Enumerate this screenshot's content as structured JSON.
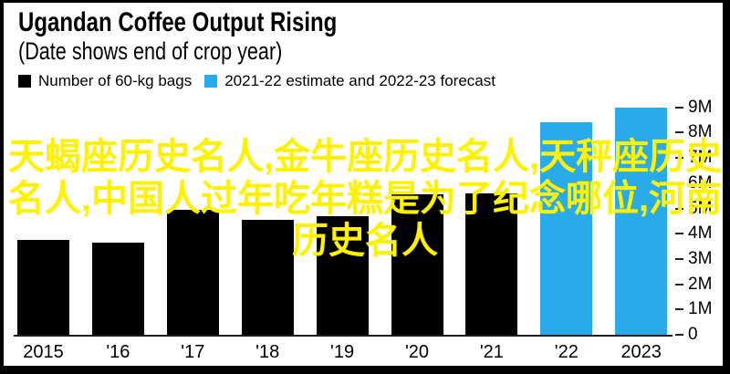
{
  "header": {
    "title": "Ugandan Coffee Output Rising",
    "subtitle": "(Date shows end of crop year)"
  },
  "legend": {
    "items": [
      {
        "label": "Number of 60-kg bags",
        "color": "#000000"
      },
      {
        "label": "2021-22 estimate and 2022-23 forecast",
        "color": "#29ABE9"
      }
    ]
  },
  "overlay": {
    "full_text": "天蝎座历史名人,金牛座历史名人,天秤座历史名人,中国人过年吃年糕是为了纪念哪位,河南历史名人",
    "lines": [
      "天蝎座历史名人,金牛座历史名人,天秤座历史",
      "名人,中国人过年吃年糕是为了纪念哪位,河南",
      "历史名人"
    ],
    "color": "#FFF200"
  },
  "chart_data": {
    "type": "bar",
    "title": "Ugandan Coffee Output Rising",
    "subtitle": "(Date shows end of crop year)",
    "categories": [
      "2015",
      "'16",
      "'17",
      "'18",
      "'19",
      "'20",
      "'21",
      "'22",
      "2023"
    ],
    "series": [
      {
        "name": "Number of 60-kg bags",
        "color": "#000000",
        "values": [
          3.75,
          3.65,
          4.95,
          4.55,
          4.7,
          5.55,
          5.6,
          null,
          null
        ]
      },
      {
        "name": "2021-22 estimate and 2022-23 forecast",
        "color": "#29ABE9",
        "values": [
          null,
          null,
          null,
          null,
          null,
          null,
          null,
          8.4,
          9.0
        ]
      }
    ],
    "ylim": [
      0,
      9
    ],
    "yticks": [
      0,
      1,
      2,
      3,
      4,
      5,
      6,
      7,
      8,
      9
    ],
    "ytick_labels": [
      "0",
      "1M",
      "2M",
      "3M",
      "4M",
      "5M",
      "6M",
      "7M",
      "8M",
      "9M"
    ],
    "axis_side": "right",
    "grid": false,
    "legend_position": "top",
    "background": "#FFFFFF"
  }
}
